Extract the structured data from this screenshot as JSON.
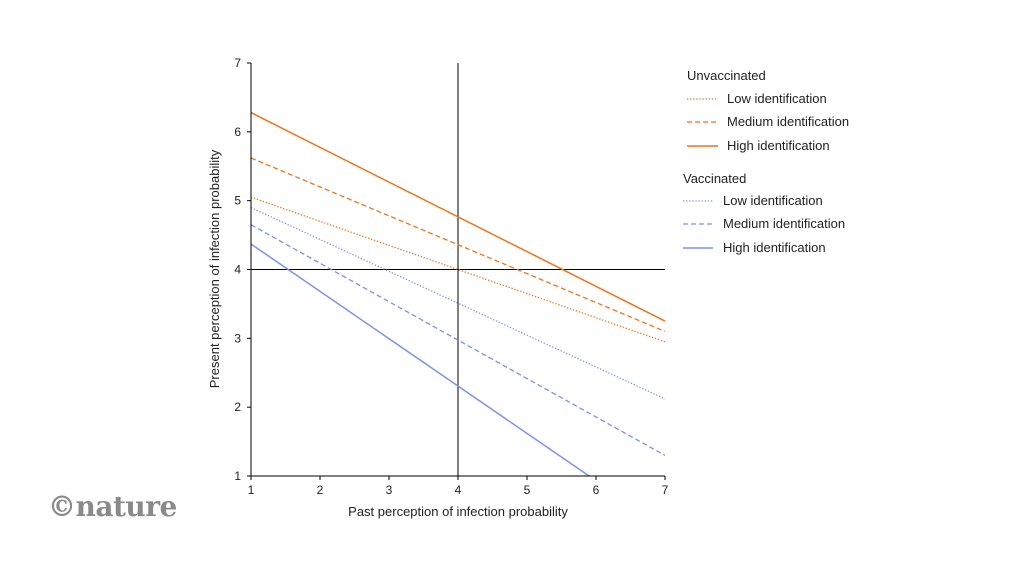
{
  "chart_data": {
    "type": "line",
    "xlabel": "Past perception of infection probability",
    "ylabel": "Present perception of infection probability",
    "xlim": [
      1,
      7
    ],
    "ylim": [
      1,
      7
    ],
    "x_ticks": [
      1,
      2,
      3,
      4,
      5,
      6,
      7
    ],
    "y_ticks": [
      1,
      2,
      3,
      4,
      5,
      6,
      7
    ],
    "reference_lines": {
      "x": 4,
      "y": 4
    },
    "legend_position": "top-right",
    "groups": [
      {
        "name": "Unvaccinated",
        "series": [
          {
            "name": "Low identification",
            "style": "dotted",
            "color": "#e8761f",
            "x": [
              1,
              7
            ],
            "y": [
              5.05,
              2.95
            ]
          },
          {
            "name": "Medium identification",
            "style": "dashed",
            "color": "#e8761f",
            "x": [
              1,
              7
            ],
            "y": [
              5.62,
              3.1
            ]
          },
          {
            "name": "High identification",
            "style": "solid",
            "color": "#e8761f",
            "x": [
              1,
              7
            ],
            "y": [
              6.28,
              3.25
            ]
          }
        ]
      },
      {
        "name": "Vaccinated",
        "series": [
          {
            "name": "Low identification",
            "style": "dotted",
            "color": "#7b93e6",
            "x": [
              1,
              7
            ],
            "y": [
              4.9,
              2.12
            ]
          },
          {
            "name": "Medium identification",
            "style": "dashed",
            "color": "#7b93e6",
            "x": [
              1,
              7
            ],
            "y": [
              4.65,
              1.3
            ]
          },
          {
            "name": "High identification",
            "style": "solid",
            "color": "#7b93e6",
            "x": [
              1,
              5.9
            ],
            "y": [
              4.37,
              1.0
            ]
          }
        ]
      }
    ]
  },
  "branding": {
    "logo_text": "©nature"
  }
}
